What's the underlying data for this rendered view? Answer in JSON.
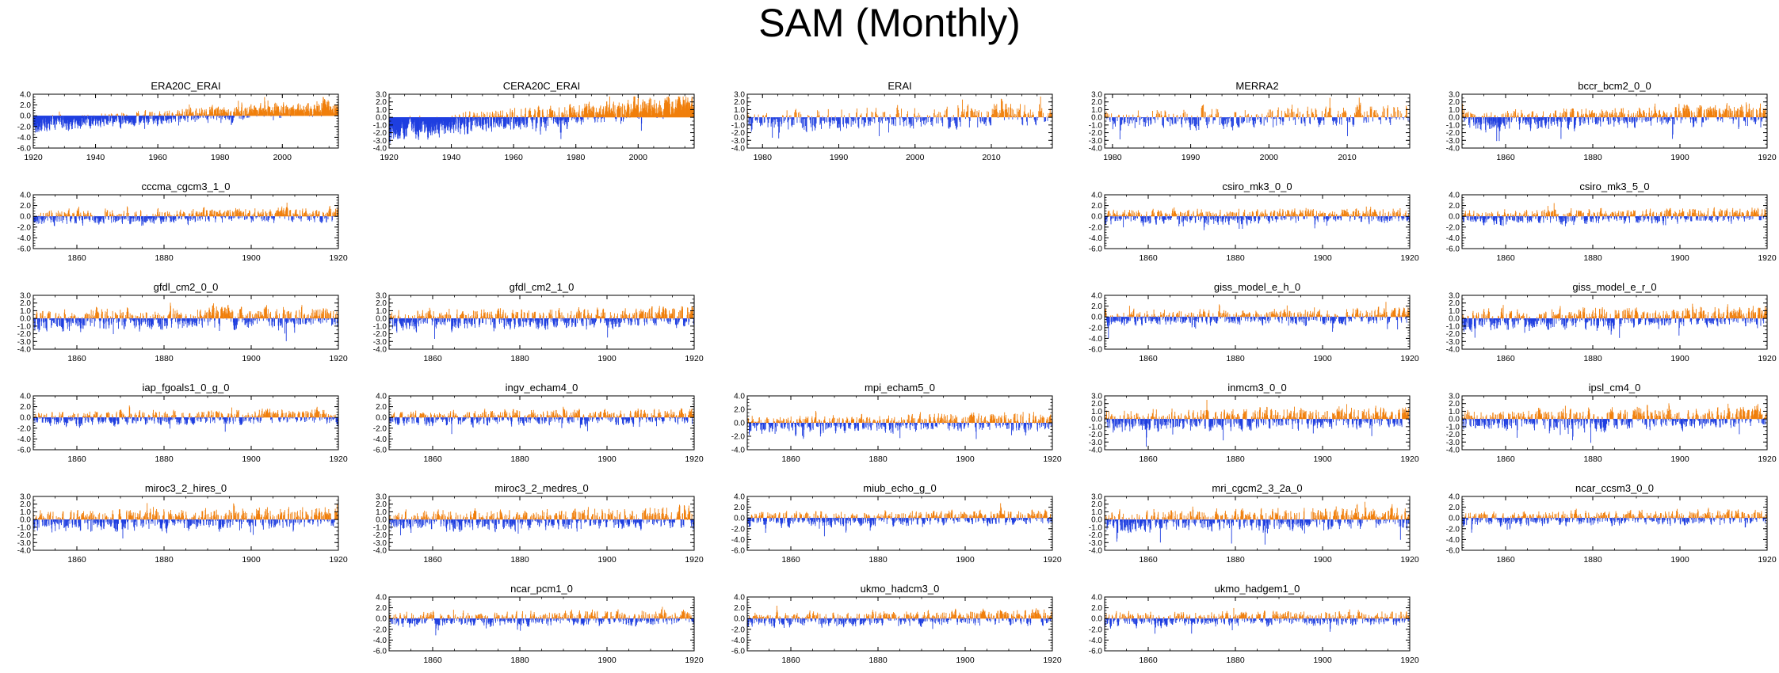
{
  "title": "SAM (Monthly)",
  "colors": {
    "positive": "#f07f0b",
    "negative": "#1f3fe0",
    "axis": "#000000"
  },
  "chart_data": [
    {
      "type": "bar",
      "title": "ERA20C_ERAI",
      "x_range": [
        1920,
        2018
      ],
      "x_ticks": [
        1920,
        1940,
        1960,
        1980,
        2000
      ],
      "y_ticks": [
        "4.0",
        "2.0",
        "0.0",
        "-2.0",
        "-4.0",
        "-6.0"
      ],
      "ylim": [
        -6,
        4
      ],
      "positive_color": "#f07f0b",
      "negative_color": "#1f3fe0"
    },
    {
      "type": "bar",
      "title": "CERA20C_ERAI",
      "x_range": [
        1920,
        2018
      ],
      "x_ticks": [
        1920,
        1940,
        1960,
        1980,
        2000
      ],
      "y_ticks": [
        "3.0",
        "2.0",
        "1.0",
        "0.0",
        "-1.0",
        "-2.0",
        "-3.0",
        "-4.0"
      ],
      "ylim": [
        -4,
        3
      ],
      "positive_color": "#f07f0b",
      "negative_color": "#1f3fe0"
    },
    {
      "type": "bar",
      "title": "ERAI",
      "x_range": [
        1978,
        2018
      ],
      "x_ticks": [
        1980,
        1990,
        2000,
        2010
      ],
      "y_ticks": [
        "3.0",
        "2.0",
        "1.0",
        "0.0",
        "-1.0",
        "-2.0",
        "-3.0",
        "-4.0"
      ],
      "ylim": [
        -4,
        3
      ],
      "positive_color": "#f07f0b",
      "negative_color": "#1f3fe0"
    },
    {
      "type": "bar",
      "title": "MERRA2",
      "x_range": [
        1979,
        2018
      ],
      "x_ticks": [
        1980,
        1990,
        2000,
        2010
      ],
      "y_ticks": [
        "3.0",
        "2.0",
        "1.0",
        "0.0",
        "-1.0",
        "-2.0",
        "-3.0",
        "-4.0"
      ],
      "ylim": [
        -4,
        3
      ],
      "positive_color": "#f07f0b",
      "negative_color": "#1f3fe0"
    },
    {
      "type": "bar",
      "title": "bccr_bcm2_0_0",
      "x_range": [
        1850,
        1920
      ],
      "x_ticks": [
        1860,
        1880,
        1900,
        1920
      ],
      "y_ticks": [
        "3.0",
        "2.0",
        "1.0",
        "0.0",
        "-1.0",
        "-2.0",
        "-3.0",
        "-4.0"
      ],
      "ylim": [
        -4,
        3
      ],
      "positive_color": "#f07f0b",
      "negative_color": "#1f3fe0"
    },
    {
      "type": "bar",
      "title": "cccma_cgcm3_1_0",
      "x_range": [
        1850,
        1920
      ],
      "x_ticks": [
        1860,
        1880,
        1900,
        1920
      ],
      "y_ticks": [
        "4.0",
        "2.0",
        "0.0",
        "-2.0",
        "-4.0",
        "-6.0"
      ],
      "ylim": [
        -6,
        4
      ],
      "positive_color": "#f07f0b",
      "negative_color": "#1f3fe0"
    },
    {
      "type": "bar",
      "title": "csiro_mk3_0_0",
      "x_range": [
        1850,
        1920
      ],
      "x_ticks": [
        1860,
        1880,
        1900,
        1920
      ],
      "y_ticks": [
        "4.0",
        "2.0",
        "0.0",
        "-2.0",
        "-4.0",
        "-6.0"
      ],
      "ylim": [
        -6,
        4
      ],
      "positive_color": "#f07f0b",
      "negative_color": "#1f3fe0"
    },
    {
      "type": "bar",
      "title": "csiro_mk3_5_0",
      "x_range": [
        1850,
        1920
      ],
      "x_ticks": [
        1860,
        1880,
        1900,
        1920
      ],
      "y_ticks": [
        "4.0",
        "2.0",
        "0.0",
        "-2.0",
        "-4.0",
        "-6.0"
      ],
      "ylim": [
        -6,
        4
      ],
      "positive_color": "#f07f0b",
      "negative_color": "#1f3fe0"
    },
    {
      "type": "bar",
      "title": "gfdl_cm2_0_0",
      "x_range": [
        1850,
        1920
      ],
      "x_ticks": [
        1860,
        1880,
        1900,
        1920
      ],
      "y_ticks": [
        "3.0",
        "2.0",
        "1.0",
        "0.0",
        "-1.0",
        "-2.0",
        "-3.0",
        "-4.0"
      ],
      "ylim": [
        -4,
        3
      ],
      "positive_color": "#f07f0b",
      "negative_color": "#1f3fe0"
    },
    {
      "type": "bar",
      "title": "gfdl_cm2_1_0",
      "x_range": [
        1850,
        1920
      ],
      "x_ticks": [
        1860,
        1880,
        1900,
        1920
      ],
      "y_ticks": [
        "3.0",
        "2.0",
        "1.0",
        "0.0",
        "-1.0",
        "-2.0",
        "-3.0",
        "-4.0"
      ],
      "ylim": [
        -4,
        3
      ],
      "positive_color": "#f07f0b",
      "negative_color": "#1f3fe0"
    },
    {
      "type": "bar",
      "title": "giss_model_e_h_0",
      "x_range": [
        1850,
        1920
      ],
      "x_ticks": [
        1860,
        1880,
        1900,
        1920
      ],
      "y_ticks": [
        "4.0",
        "2.0",
        "0.0",
        "-2.0",
        "-4.0",
        "-6.0"
      ],
      "ylim": [
        -6,
        4
      ],
      "positive_color": "#f07f0b",
      "negative_color": "#1f3fe0"
    },
    {
      "type": "bar",
      "title": "giss_model_e_r_0",
      "x_range": [
        1850,
        1920
      ],
      "x_ticks": [
        1860,
        1880,
        1900,
        1920
      ],
      "y_ticks": [
        "3.0",
        "2.0",
        "1.0",
        "0.0",
        "-1.0",
        "-2.0",
        "-3.0",
        "-4.0"
      ],
      "ylim": [
        -4,
        3
      ],
      "positive_color": "#f07f0b",
      "negative_color": "#1f3fe0"
    },
    {
      "type": "bar",
      "title": "iap_fgoals1_0_g_0",
      "x_range": [
        1850,
        1920
      ],
      "x_ticks": [
        1860,
        1880,
        1900,
        1920
      ],
      "y_ticks": [
        "4.0",
        "2.0",
        "0.0",
        "-2.0",
        "-4.0",
        "-6.0"
      ],
      "ylim": [
        -6,
        4
      ],
      "positive_color": "#f07f0b",
      "negative_color": "#1f3fe0"
    },
    {
      "type": "bar",
      "title": "ingv_echam4_0",
      "x_range": [
        1850,
        1920
      ],
      "x_ticks": [
        1860,
        1880,
        1900,
        1920
      ],
      "y_ticks": [
        "4.0",
        "2.0",
        "0.0",
        "-2.0",
        "-4.0",
        "-6.0"
      ],
      "ylim": [
        -6,
        4
      ],
      "positive_color": "#f07f0b",
      "negative_color": "#1f3fe0"
    },
    {
      "type": "bar",
      "title": "mpi_echam5_0",
      "x_range": [
        1850,
        1920
      ],
      "x_ticks": [
        1860,
        1880,
        1900,
        1920
      ],
      "y_ticks": [
        "4.0",
        "2.0",
        "0.0",
        "-2.0",
        "-4.0"
      ],
      "ylim": [
        -4,
        4
      ],
      "positive_color": "#f07f0b",
      "negative_color": "#1f3fe0"
    },
    {
      "type": "bar",
      "title": "inmcm3_0_0",
      "x_range": [
        1850,
        1920
      ],
      "x_ticks": [
        1860,
        1880,
        1900,
        1920
      ],
      "y_ticks": [
        "3.0",
        "2.0",
        "1.0",
        "0.0",
        "-1.0",
        "-2.0",
        "-3.0",
        "-4.0"
      ],
      "ylim": [
        -4,
        3
      ],
      "positive_color": "#f07f0b",
      "negative_color": "#1f3fe0"
    },
    {
      "type": "bar",
      "title": "ipsl_cm4_0",
      "x_range": [
        1850,
        1920
      ],
      "x_ticks": [
        1860,
        1880,
        1900,
        1920
      ],
      "y_ticks": [
        "3.0",
        "2.0",
        "1.0",
        "0.0",
        "-1.0",
        "-2.0",
        "-3.0",
        "-4.0"
      ],
      "ylim": [
        -4,
        3
      ],
      "positive_color": "#f07f0b",
      "negative_color": "#1f3fe0"
    },
    {
      "type": "bar",
      "title": "miroc3_2_hires_0",
      "x_range": [
        1850,
        1920
      ],
      "x_ticks": [
        1860,
        1880,
        1900,
        1920
      ],
      "y_ticks": [
        "3.0",
        "2.0",
        "1.0",
        "0.0",
        "-1.0",
        "-2.0",
        "-3.0",
        "-4.0"
      ],
      "ylim": [
        -4,
        3
      ],
      "positive_color": "#f07f0b",
      "negative_color": "#1f3fe0"
    },
    {
      "type": "bar",
      "title": "miroc3_2_medres_0",
      "x_range": [
        1850,
        1920
      ],
      "x_ticks": [
        1860,
        1880,
        1900,
        1920
      ],
      "y_ticks": [
        "3.0",
        "2.0",
        "1.0",
        "0.0",
        "-1.0",
        "-2.0",
        "-3.0",
        "-4.0"
      ],
      "ylim": [
        -4,
        3
      ],
      "positive_color": "#f07f0b",
      "negative_color": "#1f3fe0"
    },
    {
      "type": "bar",
      "title": "miub_echo_g_0",
      "x_range": [
        1850,
        1920
      ],
      "x_ticks": [
        1860,
        1880,
        1900,
        1920
      ],
      "y_ticks": [
        "4.0",
        "2.0",
        "0.0",
        "-2.0",
        "-4.0",
        "-6.0"
      ],
      "ylim": [
        -6,
        4
      ],
      "positive_color": "#f07f0b",
      "negative_color": "#1f3fe0"
    },
    {
      "type": "bar",
      "title": "mri_cgcm2_3_2a_0",
      "x_range": [
        1850,
        1920
      ],
      "x_ticks": [
        1860,
        1880,
        1900,
        1920
      ],
      "y_ticks": [
        "3.0",
        "2.0",
        "1.0",
        "0.0",
        "-1.0",
        "-2.0",
        "-3.0",
        "-4.0"
      ],
      "ylim": [
        -4,
        3
      ],
      "positive_color": "#f07f0b",
      "negative_color": "#1f3fe0"
    },
    {
      "type": "bar",
      "title": "ncar_ccsm3_0_0",
      "x_range": [
        1850,
        1920
      ],
      "x_ticks": [
        1860,
        1880,
        1900,
        1920
      ],
      "y_ticks": [
        "4.0",
        "2.0",
        "0.0",
        "-2.0",
        "-4.0",
        "-6.0"
      ],
      "ylim": [
        -6,
        4
      ],
      "positive_color": "#f07f0b",
      "negative_color": "#1f3fe0"
    },
    {
      "type": "bar",
      "title": "ncar_pcm1_0",
      "x_range": [
        1850,
        1920
      ],
      "x_ticks": [
        1860,
        1880,
        1900,
        1920
      ],
      "y_ticks": [
        "4.0",
        "2.0",
        "0.0",
        "-2.0",
        "-4.0",
        "-6.0"
      ],
      "ylim": [
        -6,
        4
      ],
      "positive_color": "#f07f0b",
      "negative_color": "#1f3fe0"
    },
    {
      "type": "bar",
      "title": "ukmo_hadcm3_0",
      "x_range": [
        1850,
        1920
      ],
      "x_ticks": [
        1860,
        1880,
        1900,
        1920
      ],
      "y_ticks": [
        "4.0",
        "2.0",
        "0.0",
        "-2.0",
        "-4.0",
        "-6.0"
      ],
      "ylim": [
        -6,
        4
      ],
      "positive_color": "#f07f0b",
      "negative_color": "#1f3fe0"
    },
    {
      "type": "bar",
      "title": "ukmo_hadgem1_0",
      "x_range": [
        1850,
        1920
      ],
      "x_ticks": [
        1860,
        1880,
        1900,
        1920
      ],
      "y_ticks": [
        "4.0",
        "2.0",
        "0.0",
        "-2.0",
        "-4.0",
        "-6.0"
      ],
      "ylim": [
        -6,
        4
      ],
      "positive_color": "#f07f0b",
      "negative_color": "#1f3fe0"
    }
  ]
}
